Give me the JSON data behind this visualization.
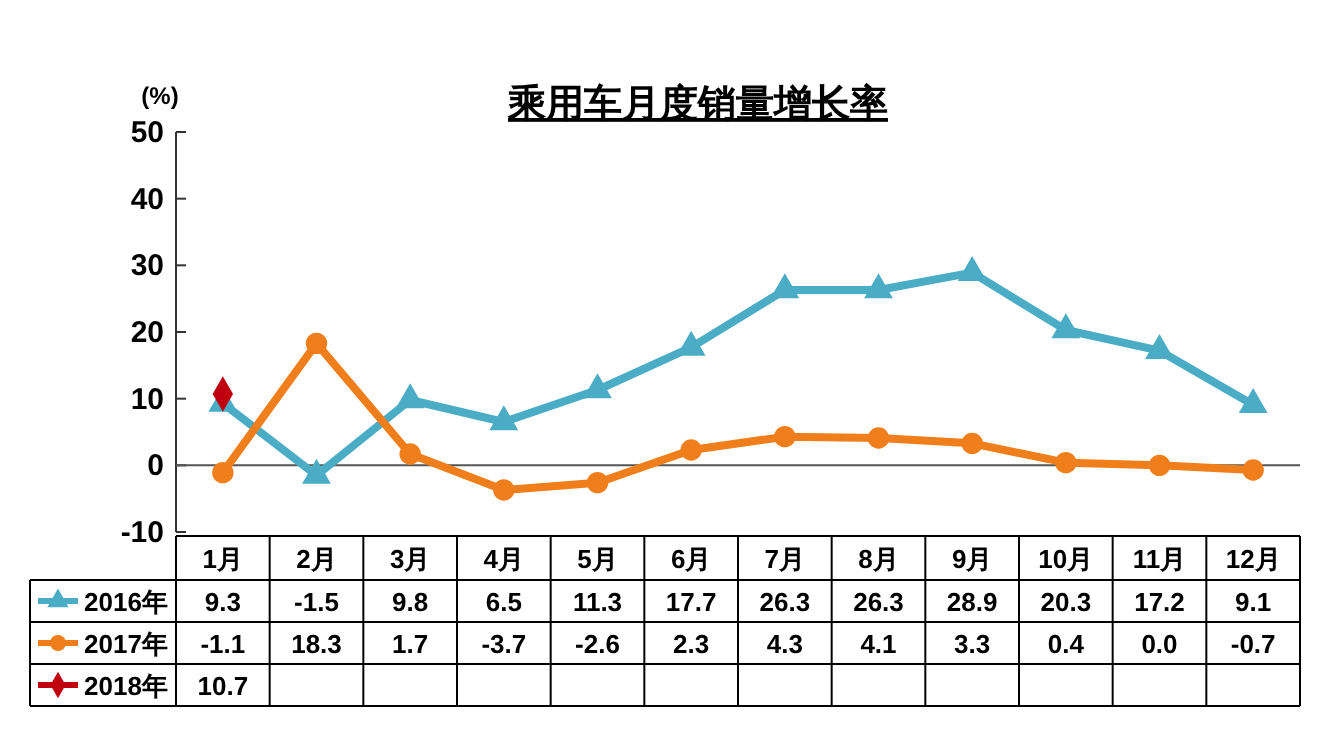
{
  "chart_data": {
    "type": "line",
    "title": "乘用车月度销量增长率",
    "ylabel": "(%)",
    "categories": [
      "1月",
      "2月",
      "3月",
      "4月",
      "5月",
      "6月",
      "7月",
      "8月",
      "9月",
      "10月",
      "11月",
      "12月"
    ],
    "series": [
      {
        "name": "2016年",
        "color": "#4bacc6",
        "marker": "triangle",
        "values": [
          9.3,
          -1.5,
          9.8,
          6.5,
          11.3,
          17.7,
          26.3,
          26.3,
          28.9,
          20.3,
          17.2,
          9.1
        ],
        "value_labels": [
          "9.3",
          "-1.5",
          "9.8",
          "6.5",
          "11.3",
          "17.7",
          "26.3",
          "26.3",
          "28.9",
          "20.3",
          "17.2",
          "9.1"
        ]
      },
      {
        "name": "2017年",
        "color": "#f07f1b",
        "marker": "circle",
        "values": [
          -1.1,
          18.3,
          1.7,
          -3.7,
          -2.6,
          2.3,
          4.3,
          4.1,
          3.3,
          0.4,
          0.0,
          -0.7
        ],
        "value_labels": [
          "-1.1",
          "18.3",
          "1.7",
          "-3.7",
          "-2.6",
          "2.3",
          "4.3",
          "4.1",
          "3.3",
          "0.4",
          "0.0",
          "-0.7"
        ]
      },
      {
        "name": "2018年",
        "color": "#c0000f",
        "marker": "diamond",
        "values": [
          10.7,
          null,
          null,
          null,
          null,
          null,
          null,
          null,
          null,
          null,
          null,
          null
        ]
      }
    ],
    "ylim": [
      -10,
      50
    ],
    "yticks": [
      -10,
      0,
      10,
      20,
      30,
      40,
      50
    ],
    "ref_lines": [
      {
        "axis": "y",
        "value": 0,
        "color": "#555555"
      }
    ],
    "legend": "bottom",
    "annotations": [
      "10.7"
    ]
  }
}
